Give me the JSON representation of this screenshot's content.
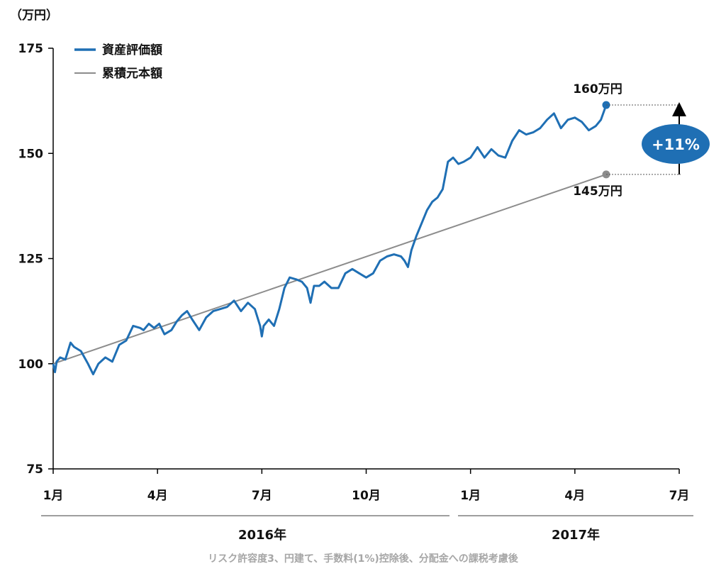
{
  "chart_data": {
    "type": "line",
    "y_unit": "（万円）",
    "yticks": [
      75,
      100,
      125,
      150,
      175
    ],
    "ylim": [
      75,
      175
    ],
    "x_month_labels": [
      "1月",
      "4月",
      "7月",
      "10月",
      "1月",
      "4月",
      "7月"
    ],
    "x_month_index": [
      0,
      3,
      6,
      9,
      12,
      15,
      18
    ],
    "year_labels": [
      "2016年",
      "2017年"
    ],
    "legend": [
      "資産評価額",
      "累積元本額"
    ],
    "legend_position": "top-left",
    "grid": false,
    "colors": {
      "asset": "#1f6fb4",
      "principal": "#8c8c8c",
      "badge": "#1f6fb4"
    },
    "series": [
      {
        "name": "資産評価額",
        "x": [
          0.0,
          0.05,
          0.1,
          0.2,
          0.35,
          0.5,
          0.6,
          0.8,
          1.0,
          1.15,
          1.3,
          1.5,
          1.7,
          1.9,
          2.1,
          2.3,
          2.5,
          2.6,
          2.75,
          2.9,
          3.05,
          3.2,
          3.4,
          3.55,
          3.7,
          3.85,
          4.0,
          4.2,
          4.4,
          4.6,
          4.8,
          5.0,
          5.2,
          5.4,
          5.6,
          5.8,
          5.95,
          6.0,
          6.05,
          6.2,
          6.35,
          6.5,
          6.65,
          6.8,
          7.0,
          7.15,
          7.3,
          7.4,
          7.5,
          7.65,
          7.8,
          8.0,
          8.2,
          8.4,
          8.6,
          8.8,
          9.0,
          9.2,
          9.4,
          9.6,
          9.8,
          10.0,
          10.1,
          10.2,
          10.3,
          10.45,
          10.6,
          10.75,
          10.9,
          11.05,
          11.2,
          11.35,
          11.5,
          11.65,
          11.8,
          12.0,
          12.2,
          12.4,
          12.6,
          12.8,
          13.0,
          13.2,
          13.4,
          13.6,
          13.8,
          14.0,
          14.2,
          14.4,
          14.6,
          14.8,
          15.0,
          15.2,
          15.4,
          15.6,
          15.75,
          15.9
        ],
        "y": [
          100.0,
          98.0,
          100.5,
          101.5,
          101.0,
          105.0,
          104.0,
          103.0,
          100.0,
          97.5,
          100.0,
          101.5,
          100.5,
          104.5,
          105.5,
          109.0,
          108.5,
          108.0,
          109.5,
          108.5,
          109.5,
          107.0,
          108.0,
          110.0,
          111.5,
          112.5,
          110.5,
          108.0,
          111.0,
          112.5,
          113.0,
          113.5,
          115.0,
          112.5,
          114.5,
          113.0,
          109.0,
          106.5,
          109.0,
          110.5,
          109.0,
          113.0,
          118.0,
          120.5,
          120.0,
          119.5,
          118.0,
          114.5,
          118.5,
          118.5,
          119.5,
          118.0,
          118.0,
          121.5,
          122.5,
          121.5,
          120.5,
          121.5,
          124.5,
          125.5,
          126.0,
          125.5,
          124.5,
          123.0,
          127.0,
          130.5,
          133.5,
          136.5,
          138.5,
          139.5,
          141.5,
          148.0,
          149.0,
          147.5,
          148.0,
          149.0,
          151.5,
          149.0,
          151.0,
          149.5,
          149.0,
          153.0,
          155.5,
          154.5,
          155.0,
          156.0,
          158.0,
          159.5,
          156.0,
          158.0,
          158.5,
          157.5,
          155.5,
          156.5,
          158.0,
          161.5
        ]
      },
      {
        "name": "累積元本額",
        "x": [
          0.0,
          15.9
        ],
        "y": [
          100.0,
          145.0
        ]
      }
    ],
    "annotations": {
      "asset_end": "160万円",
      "principal_end": "145万円",
      "gain": "+11%"
    }
  },
  "footnote": "リスク許容度3、円建て、手数料(1%)控除後、分配金への課税考慮後"
}
